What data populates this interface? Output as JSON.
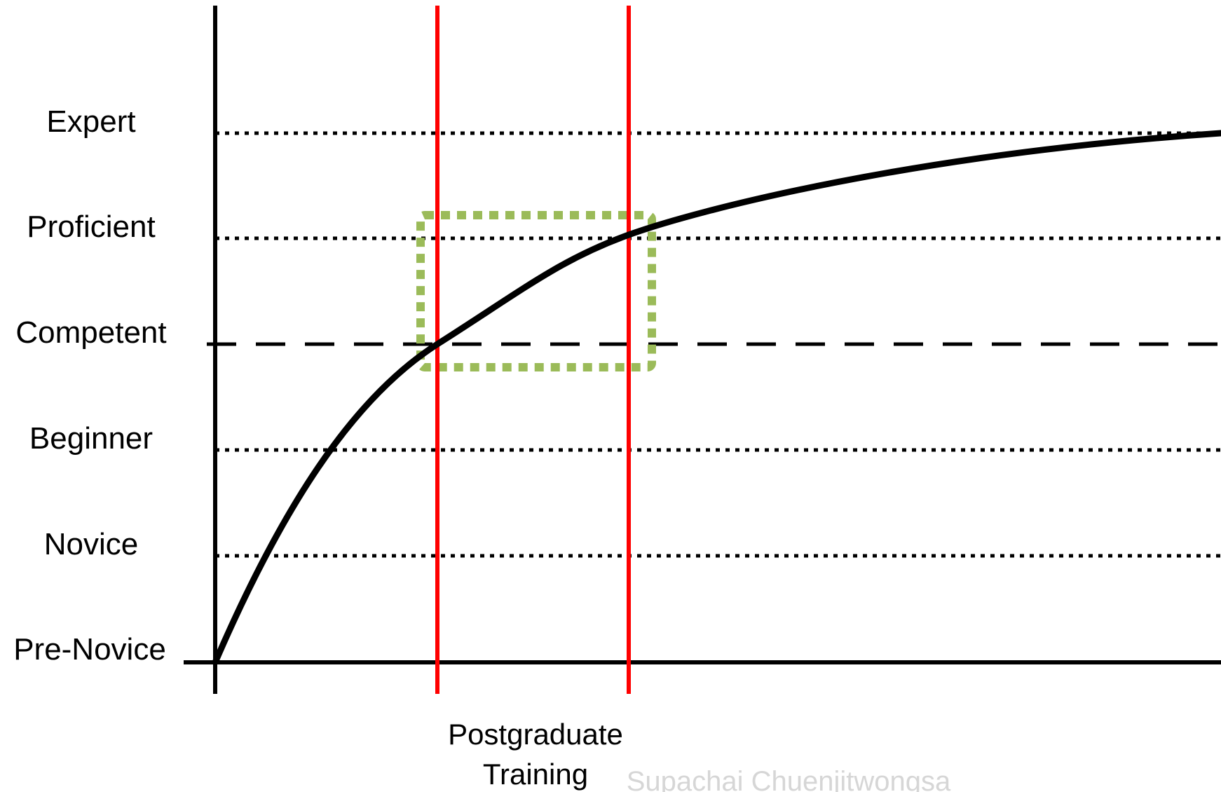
{
  "diagram": {
    "levels": [
      {
        "key": "expert",
        "label": "Expert",
        "line": "dotted"
      },
      {
        "key": "proficient",
        "label": "Proficient",
        "line": "dotted"
      },
      {
        "key": "competent",
        "label": "Competent",
        "line": "dashed"
      },
      {
        "key": "beginner",
        "label": "Beginner",
        "line": "dotted"
      },
      {
        "key": "novice",
        "label": "Novice",
        "line": "dotted"
      },
      {
        "key": "pre_novice",
        "label": "Pre-Novice",
        "line": "axis"
      }
    ],
    "x_label_line1": "Postgraduate",
    "x_label_line2": "Training",
    "watermark": "Supachai Chuenjitwongsa",
    "colors": {
      "axis": "#000000",
      "curve": "#000000",
      "training_markers": "#ff0000",
      "highlight_box": "#9bbb59",
      "watermark": "#d6d6d6"
    }
  }
}
